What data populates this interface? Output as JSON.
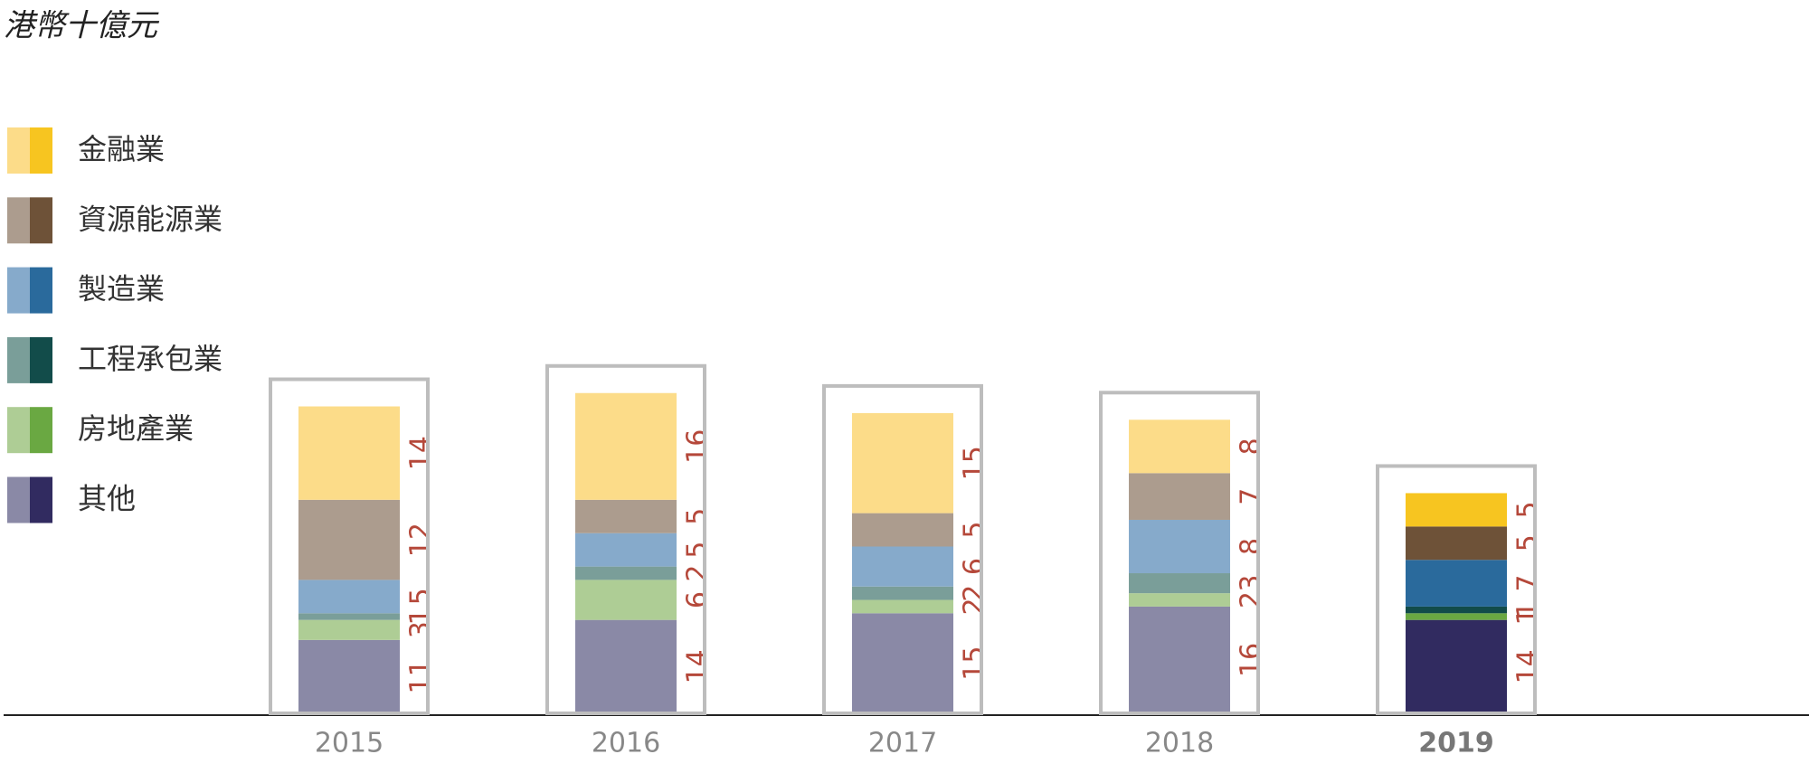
{
  "chart_data": {
    "type": "stacked_bar",
    "y_unit_label": "港幣十億元",
    "categories": [
      "2015",
      "2016",
      "2017",
      "2018",
      "2019"
    ],
    "highlight_category": "2019",
    "ylim": [
      0,
      50
    ],
    "label_color": "#b5483a",
    "series": [
      {
        "name": "其他",
        "color": "#8a89a6",
        "highlight_color": "#312b60",
        "values": [
          11,
          14,
          15,
          16,
          14
        ]
      },
      {
        "name": "房地產業",
        "color": "#aecd95",
        "highlight_color": "#6aa842",
        "values": [
          3,
          6,
          2,
          2,
          1
        ]
      },
      {
        "name": "工程承包業",
        "color": "#7a9e99",
        "highlight_color": "#124c4a",
        "values": [
          1,
          2,
          2,
          3,
          1
        ]
      },
      {
        "name": "製造業",
        "color": "#86aacb",
        "highlight_color": "#2a6a9c",
        "values": [
          5,
          5,
          6,
          8,
          7
        ]
      },
      {
        "name": "資源能源業",
        "color": "#ac9c8e",
        "highlight_color": "#6e5238",
        "values": [
          12,
          5,
          5,
          7,
          5
        ]
      },
      {
        "name": "金融業",
        "color": "#fcdc89",
        "highlight_color": "#f7c520",
        "values": [
          14,
          16,
          15,
          8,
          5
        ]
      }
    ]
  }
}
